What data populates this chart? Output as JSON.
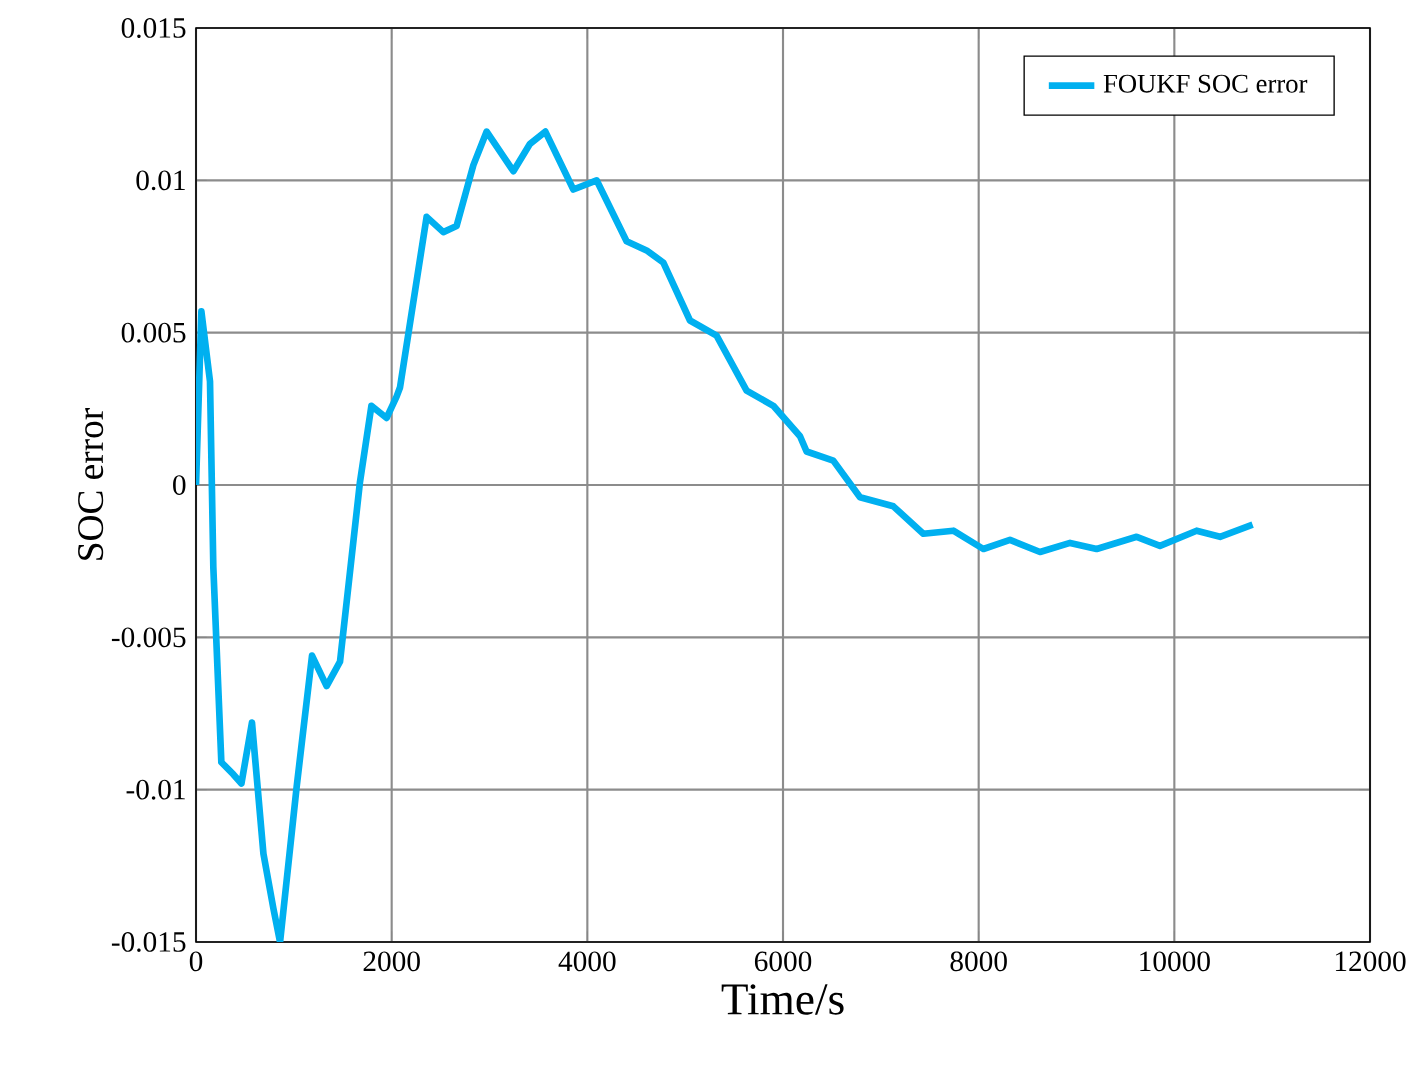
{
  "chart_data": {
    "type": "line",
    "xlabel": "Time/s",
    "ylabel": "SOC error",
    "xlim": [
      0,
      12000
    ],
    "ylim": [
      -0.015,
      0.015
    ],
    "xticks": [
      0,
      2000,
      4000,
      6000,
      8000,
      10000,
      12000
    ],
    "yticks": [
      -0.015,
      -0.01,
      -0.005,
      0,
      0.005,
      0.01,
      0.015
    ],
    "grid": true,
    "legend": "top right",
    "series": [
      {
        "name": "FOUKF SOC error",
        "color": "#00b0f0",
        "x": [
          0,
          55,
          143,
          177,
          259,
          382,
          464,
          572,
          689,
          791,
          859,
          1029,
          1186,
          1335,
          1472,
          1676,
          1793,
          1948,
          2050,
          2085,
          2357,
          2528,
          2663,
          2835,
          2971,
          3244,
          3414,
          3571,
          3857,
          4095,
          4401,
          4606,
          4777,
          5049,
          5321,
          5628,
          5901,
          6174,
          6241,
          6514,
          6787,
          7128,
          7434,
          7741,
          8048,
          8320,
          8627,
          8934,
          9206,
          9615,
          9853,
          10228,
          10467,
          10800
        ],
        "values": [
          0,
          0.0057,
          0.0034,
          -0.0027,
          -0.0091,
          -0.0095,
          -0.0098,
          -0.0078,
          -0.0121,
          -0.0139,
          -0.015,
          -0.0099,
          -0.0056,
          -0.0066,
          -0.0058,
          0.0001,
          0.0026,
          0.0022,
          0.0029,
          0.0032,
          0.0088,
          0.0083,
          0.0085,
          0.0105,
          0.0116,
          0.0103,
          0.0112,
          0.0116,
          0.0097,
          0.01,
          0.008,
          0.0077,
          0.0073,
          0.0054,
          0.0049,
          0.0031,
          0.0026,
          0.0016,
          0.0011,
          0.0008,
          -0.0004,
          -0.0007,
          -0.0016,
          -0.0015,
          -0.0021,
          -0.0018,
          -0.0022,
          -0.0019,
          -0.0021,
          -0.0017,
          -0.002,
          -0.0015,
          -0.0017,
          -0.0013
        ]
      }
    ]
  }
}
